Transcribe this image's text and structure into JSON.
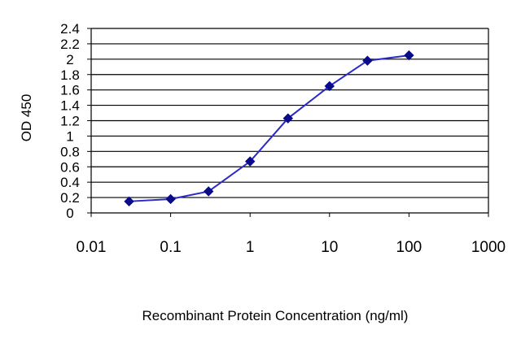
{
  "chart_data": {
    "type": "line",
    "xlabel": "Recombinant Protein Concentration (ng/ml)",
    "ylabel": "OD 450",
    "x_scale": "log",
    "xlim": [
      0.01,
      1000
    ],
    "ylim": [
      0,
      2.4
    ],
    "x_ticks": [
      "0.01",
      "0.1",
      "1",
      "10",
      "100",
      "1000"
    ],
    "y_ticks": [
      "0",
      "0.2",
      "0.4",
      "0.6",
      "0.8",
      "1",
      "1.2",
      "1.4",
      "1.6",
      "1.8",
      "2",
      "2.2",
      "2.4"
    ],
    "grid": "horizontal",
    "series": [
      {
        "x": [
          0.03,
          0.1,
          0.3,
          1,
          3,
          10,
          30,
          100
        ],
        "y": [
          0.15,
          0.18,
          0.28,
          0.67,
          1.23,
          1.65,
          1.98,
          2.05
        ]
      }
    ],
    "colors": {
      "line": "#2a2ac8",
      "marker": "#0a0a8c",
      "grid": "#000000"
    }
  }
}
